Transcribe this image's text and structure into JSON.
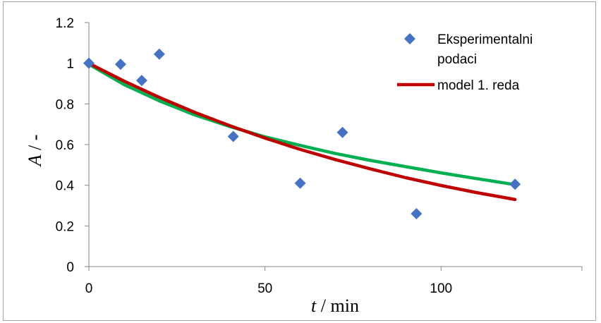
{
  "chart_data": {
    "type": "scatter",
    "title": "",
    "xlabel": {
      "var": "t",
      "unit": " / min"
    },
    "ylabel": {
      "var": "A",
      "unit": " / -"
    },
    "xlim": [
      0,
      140
    ],
    "ylim": [
      0,
      1.2
    ],
    "x_ticks": [
      0,
      50,
      100
    ],
    "y_ticks": [
      0,
      0.2,
      0.4,
      0.6,
      0.8,
      1,
      1.2
    ],
    "x_tick_labels": [
      "0",
      "50",
      "100"
    ],
    "y_tick_labels": [
      "0",
      "0.2",
      "0.4",
      "0.6",
      "0.8",
      "1",
      "1.2"
    ],
    "grid": false,
    "legend_position": "top-right",
    "series": [
      {
        "name": "Eksperimentalni podaci",
        "kind": "markers",
        "marker": "diamond",
        "color": "#4472c4",
        "x": [
          0,
          9,
          15,
          20,
          41,
          60,
          72,
          93,
          121
        ],
        "y": [
          1.0,
          0.995,
          0.915,
          1.045,
          0.64,
          0.41,
          0.66,
          0.26,
          0.405
        ]
      },
      {
        "name": "model 1. reda",
        "kind": "line",
        "color": "#c00000",
        "x": [
          0,
          10,
          20,
          30,
          40,
          50,
          60,
          70,
          80,
          90,
          100,
          110,
          121
        ],
        "y": [
          1.0,
          0.912,
          0.832,
          0.759,
          0.693,
          0.632,
          0.576,
          0.526,
          0.48,
          0.437,
          0.399,
          0.364,
          0.33
        ]
      },
      {
        "kind": "line",
        "color": "#00b050",
        "x": [
          0,
          10,
          20,
          30,
          40,
          50,
          60,
          70,
          80,
          90,
          100,
          110,
          121
        ],
        "y": [
          0.995,
          0.895,
          0.815,
          0.746,
          0.689,
          0.638,
          0.596,
          0.556,
          0.522,
          0.491,
          0.461,
          0.433,
          0.403
        ]
      }
    ],
    "legend": [
      {
        "label_lines": [
          "Eksperimentalni",
          "podaci"
        ],
        "series": 0
      },
      {
        "label_lines": [
          "model 1. reda"
        ],
        "series": 1
      }
    ]
  }
}
